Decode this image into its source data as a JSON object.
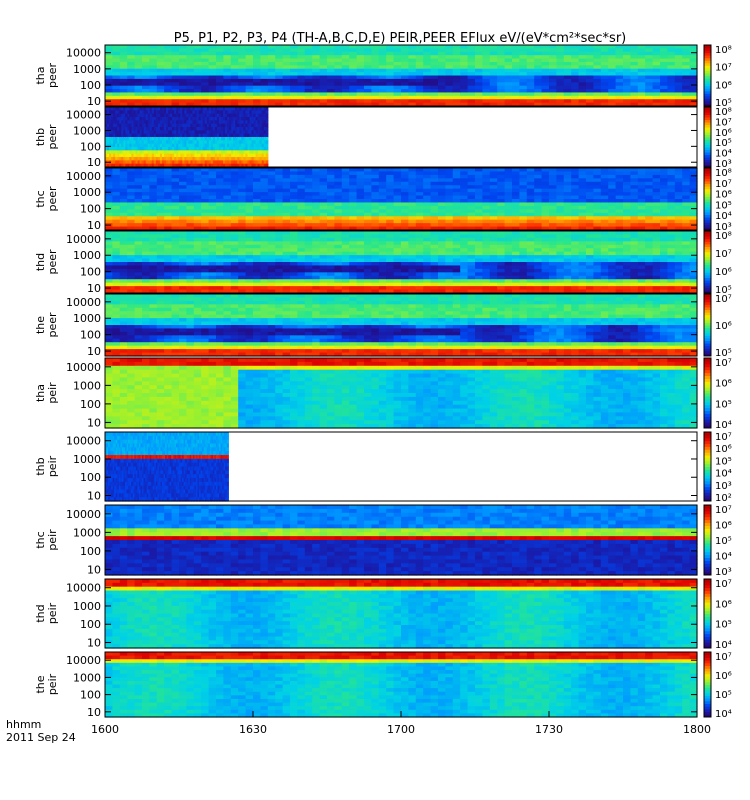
{
  "title": "P5, P1, P2, P3, P4 (TH-A,B,C,D,E) PEIR,PEER EFlux eV/(eV*cm²*sec*sr)",
  "footer": {
    "label": "hhmm",
    "date": "2011 Sep 24"
  },
  "colormap": [
    "#2a0064",
    "#1a1aa8",
    "#0046f0",
    "#0096ff",
    "#00d2e6",
    "#28e68c",
    "#96f032",
    "#f0f000",
    "#ffa000",
    "#ff3c00",
    "#dc0000",
    "#aa0000"
  ],
  "chart_data": {
    "type": "heatmap",
    "x_label": "hhmm",
    "x_ticks": [
      "1600",
      "1630",
      "1700",
      "1730",
      "1800"
    ],
    "x_range": [
      "1600",
      "1800"
    ],
    "y_ticks": [
      "10",
      "100",
      "1000",
      "10000"
    ],
    "y_scale": "log",
    "y_range": [
      5,
      30000
    ],
    "colorbar_scale": "log",
    "panels": [
      {
        "probe": "tha",
        "product": "peer",
        "data_end": "1800",
        "cbar_ticks": [
          "10⁵",
          "10⁶",
          "10⁷",
          "10⁸"
        ],
        "cbar_exp": [
          5,
          8
        ]
      },
      {
        "probe": "thb",
        "product": "peer",
        "data_end": "1633",
        "cbar_ticks": [
          "10³",
          "10⁴",
          "10⁵",
          "10⁶",
          "10⁷",
          "10⁸"
        ],
        "cbar_exp": [
          3,
          8
        ]
      },
      {
        "probe": "thc",
        "product": "peer",
        "data_end": "1800",
        "cbar_ticks": [
          "10³",
          "10⁴",
          "10⁵",
          "10⁶",
          "10⁷",
          "10⁸"
        ],
        "cbar_exp": [
          3,
          8
        ]
      },
      {
        "probe": "thd",
        "product": "peer",
        "data_end": "1800",
        "cbar_ticks": [
          "10⁵",
          "10⁶",
          "10⁷",
          "10⁸"
        ],
        "cbar_exp": [
          5,
          8
        ]
      },
      {
        "probe": "the",
        "product": "peer",
        "data_end": "1800",
        "cbar_ticks": [
          "10⁵",
          "10⁶",
          "10⁷"
        ],
        "cbar_exp": [
          5,
          8
        ]
      },
      {
        "probe": "tha",
        "product": "peir",
        "data_end": "1800",
        "cbar_ticks": [
          "10⁴",
          "10⁵",
          "10⁶",
          "10⁷"
        ],
        "cbar_exp": [
          3.5,
          7
        ]
      },
      {
        "probe": "thb",
        "product": "peir",
        "data_end": "1625",
        "cbar_ticks": [
          "10²",
          "10³",
          "10⁴",
          "10⁵",
          "10⁶",
          "10⁷"
        ],
        "cbar_exp": [
          2,
          7
        ]
      },
      {
        "probe": "thc",
        "product": "peir",
        "data_end": "1800",
        "cbar_ticks": [
          "10³",
          "10⁴",
          "10⁵",
          "10⁶",
          "10⁷"
        ],
        "cbar_exp": [
          3,
          7
        ]
      },
      {
        "probe": "thd",
        "product": "peir",
        "data_end": "1800",
        "cbar_ticks": [
          "10⁴",
          "10⁵",
          "10⁶",
          "10⁷"
        ],
        "cbar_exp": [
          3.5,
          7
        ]
      },
      {
        "probe": "the",
        "product": "peir",
        "data_end": "1800",
        "cbar_ticks": [
          "10⁴",
          "10⁵",
          "10⁶",
          "10⁷"
        ],
        "cbar_exp": [
          3.5,
          7
        ]
      }
    ]
  }
}
